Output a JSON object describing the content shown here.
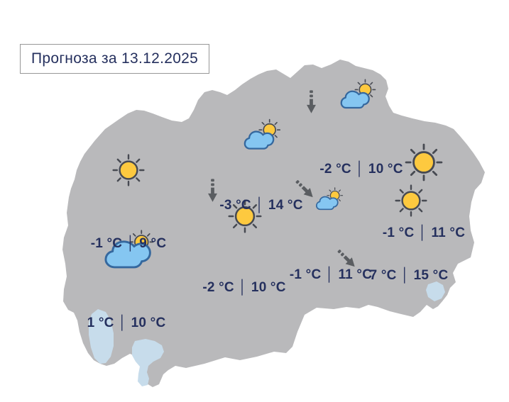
{
  "title": "Прогноза за 13.12.2025",
  "separator": "│",
  "colors": {
    "land": "#b9b9bb",
    "lake": "#c7dceb",
    "text": "#25305e",
    "arrow": "#5a5d61",
    "sun_fill": "#fdc93f",
    "sun_stroke": "#474a52",
    "cloud_fill": "#85c6f1",
    "cloud_stroke": "#35689e"
  },
  "icon_legend": {
    "sun": "sunny",
    "suncloud": "partly-cloudy",
    "cloudsun": "mostly-cloudy",
    "arrow": "wind-direction-arrow"
  },
  "stations": [
    {
      "id": "north",
      "low": "-2 °C",
      "high": "10 °C"
    },
    {
      "id": "central",
      "low": "-3 °C",
      "high": "14 °C"
    },
    {
      "id": "east",
      "low": "-1 °C",
      "high": "11 °C"
    },
    {
      "id": "west",
      "low": "-1 °C",
      "high": "9 °C"
    },
    {
      "id": "south-central",
      "low": "-2 °C",
      "high": "10 °C"
    },
    {
      "id": "southeast-inner",
      "low": "-1 °C",
      "high": "11 °C"
    },
    {
      "id": "southeast",
      "low": "7 °C",
      "high": "15 °C"
    },
    {
      "id": "southwest",
      "low": "1 °C",
      "high": "10 °C"
    }
  ]
}
